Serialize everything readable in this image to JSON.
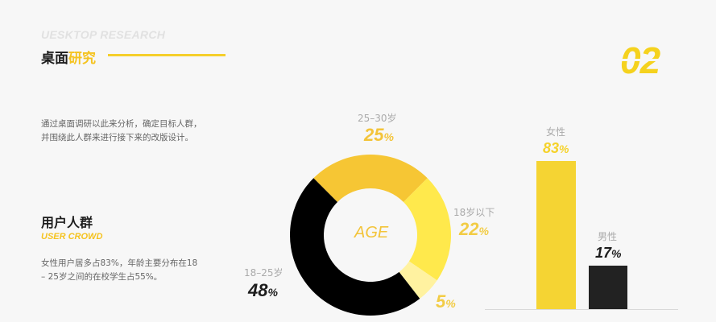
{
  "header": {
    "en_title": "UESKTOP RESEARCH",
    "cn_title_dark": "桌面",
    "cn_title_accent": "研究",
    "page_number": "02"
  },
  "intro": {
    "line1": "通过桌面调研以此来分析，确定目标人群，",
    "line2": "并围绕此人群来进行接下来的改版设计。"
  },
  "section": {
    "title": "用户人群",
    "subtitle": "USER CROWD",
    "desc_line1": "女性用户居多占83%，年龄主要分布在18",
    "desc_line2": "– 25岁之间的在校学生占55%。"
  },
  "chart_data": [
    {
      "type": "pie",
      "center_label": "AGE",
      "categories": [
        "25–30岁",
        "18岁以下",
        "",
        "18–25岁"
      ],
      "values": [
        25,
        22,
        5,
        48
      ],
      "value_labels": [
        "25",
        "22",
        "5",
        "48"
      ],
      "unit": "%",
      "colors": [
        "#f6c634",
        "#ffe94c",
        "#fff2a0",
        "#000000"
      ]
    },
    {
      "type": "bar",
      "categories": [
        "女性",
        "男性"
      ],
      "values": [
        83,
        17
      ],
      "value_labels": [
        "83",
        "17"
      ],
      "unit": "%",
      "colors": [
        "#f5d433",
        "#222222"
      ]
    }
  ],
  "colors": {
    "accent": "#f5c31f",
    "dark": "#1d1d1d",
    "background": "#f7f7f7"
  }
}
